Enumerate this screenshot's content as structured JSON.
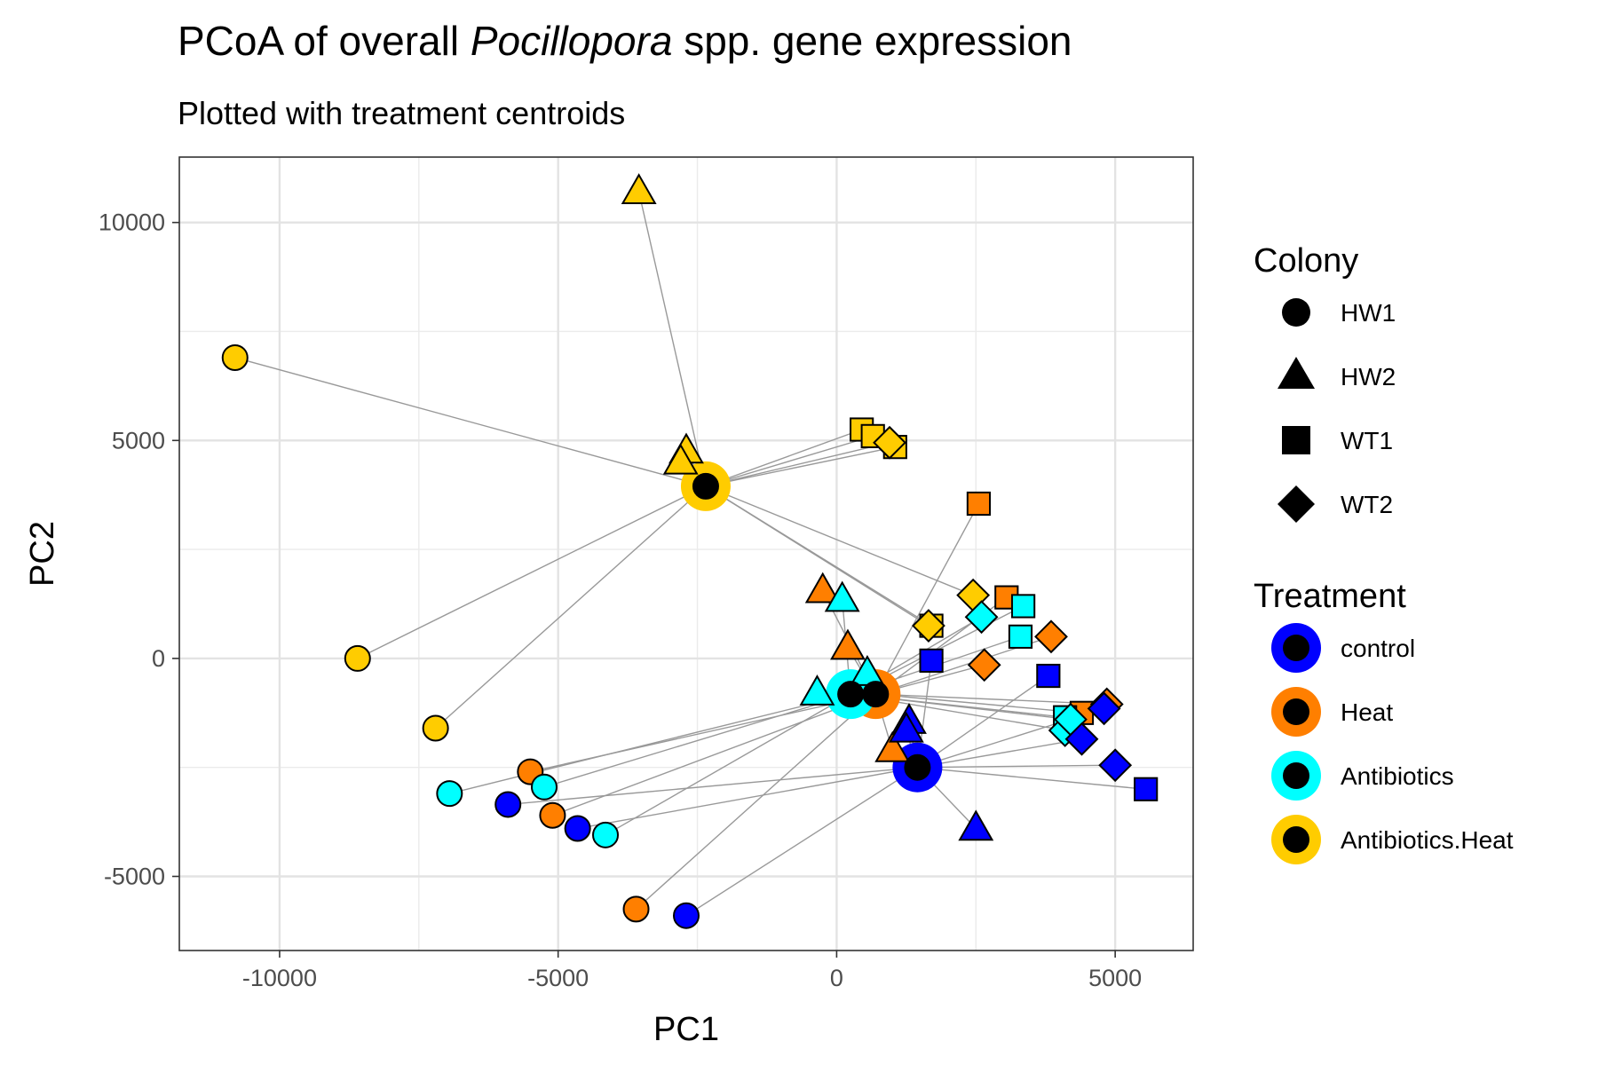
{
  "chart_data": {
    "type": "scatter",
    "title_prefix": "PCoA of overall ",
    "title_italic": "Pocillopora",
    "title_suffix": " spp. gene expression",
    "subtitle": "Plotted with treatment centroids",
    "xlabel": "PC1",
    "ylabel": "PC2",
    "xlim": [
      -11800,
      6400
    ],
    "ylim": [
      -6700,
      11500
    ],
    "xticks": [
      -10000,
      -5000,
      0,
      5000
    ],
    "yticks": [
      -5000,
      0,
      5000,
      10000
    ],
    "xtick_labels": [
      "-10000",
      "-5000",
      "0",
      "5000"
    ],
    "ytick_labels": [
      "-5000",
      "0",
      "5000",
      "10000"
    ],
    "grid": true,
    "colony_legend_title": "Colony",
    "colony_legend": [
      {
        "label": "HW1",
        "shape": "circle"
      },
      {
        "label": "HW2",
        "shape": "triangle"
      },
      {
        "label": "WT1",
        "shape": "square"
      },
      {
        "label": "WT2",
        "shape": "diamond"
      }
    ],
    "treatment_legend_title": "Treatment",
    "treatment_legend": [
      {
        "label": "control",
        "key": "control",
        "color": "#0000FF"
      },
      {
        "label": "Heat",
        "key": "heat",
        "color": "#FF7F00"
      },
      {
        "label": "Antibiotics",
        "key": "antibiotics",
        "color": "#00FFFF"
      },
      {
        "label": "Antibiotics.Heat",
        "key": "antibiotics_heat",
        "color": "#FFCC00"
      }
    ],
    "centroids": [
      {
        "treatment": "control",
        "x": 1450,
        "y": -2500
      },
      {
        "treatment": "heat",
        "x": 700,
        "y": -820
      },
      {
        "treatment": "antibiotics",
        "x": 250,
        "y": -820
      },
      {
        "treatment": "antibiotics_heat",
        "x": -2350,
        "y": 3950
      }
    ],
    "points": [
      {
        "treatment": "antibiotics_heat",
        "colony": "HW1",
        "x": -10800,
        "y": 6900
      },
      {
        "treatment": "antibiotics_heat",
        "colony": "HW1",
        "x": -8600,
        "y": 0
      },
      {
        "treatment": "antibiotics_heat",
        "colony": "HW1",
        "x": -7200,
        "y": -1600
      },
      {
        "treatment": "antibiotics_heat",
        "colony": "HW2",
        "x": -3550,
        "y": 10700
      },
      {
        "treatment": "antibiotics_heat",
        "colony": "HW2",
        "x": -2700,
        "y": 4750
      },
      {
        "treatment": "antibiotics_heat",
        "colony": "HW2",
        "x": -2800,
        "y": 4500
      },
      {
        "treatment": "antibiotics_heat",
        "colony": "WT1",
        "x": 450,
        "y": 5250
      },
      {
        "treatment": "antibiotics_heat",
        "colony": "WT1",
        "x": 650,
        "y": 5100
      },
      {
        "treatment": "antibiotics_heat",
        "colony": "WT1",
        "x": 1050,
        "y": 4850
      },
      {
        "treatment": "antibiotics_heat",
        "colony": "WT2",
        "x": 950,
        "y": 4950
      },
      {
        "treatment": "antibiotics_heat",
        "colony": "WT1",
        "x": 1700,
        "y": 750
      },
      {
        "treatment": "antibiotics_heat",
        "colony": "WT2",
        "x": 1650,
        "y": 750
      },
      {
        "treatment": "antibiotics_heat",
        "colony": "WT2",
        "x": 2450,
        "y": 1450
      },
      {
        "treatment": "heat",
        "colony": "HW1",
        "x": -5500,
        "y": -2600
      },
      {
        "treatment": "heat",
        "colony": "HW1",
        "x": -5100,
        "y": -3600
      },
      {
        "treatment": "heat",
        "colony": "HW1",
        "x": -3600,
        "y": -5750
      },
      {
        "treatment": "heat",
        "colony": "HW2",
        "x": -250,
        "y": 1550
      },
      {
        "treatment": "heat",
        "colony": "HW2",
        "x": 200,
        "y": 250
      },
      {
        "treatment": "heat",
        "colony": "HW2",
        "x": 1000,
        "y": -2100
      },
      {
        "treatment": "heat",
        "colony": "WT1",
        "x": 2550,
        "y": 3550
      },
      {
        "treatment": "heat",
        "colony": "WT1",
        "x": 3050,
        "y": 1400
      },
      {
        "treatment": "heat",
        "colony": "WT1",
        "x": 4400,
        "y": -1250
      },
      {
        "treatment": "heat",
        "colony": "WT2",
        "x": 2650,
        "y": -150
      },
      {
        "treatment": "heat",
        "colony": "WT2",
        "x": 3850,
        "y": 500
      },
      {
        "treatment": "heat",
        "colony": "WT2",
        "x": 4850,
        "y": -1050
      },
      {
        "treatment": "antibiotics",
        "colony": "HW1",
        "x": -6950,
        "y": -3100
      },
      {
        "treatment": "antibiotics",
        "colony": "HW1",
        "x": -5250,
        "y": -2950
      },
      {
        "treatment": "antibiotics",
        "colony": "HW1",
        "x": -4150,
        "y": -4050
      },
      {
        "treatment": "antibiotics",
        "colony": "HW2",
        "x": 100,
        "y": 1350
      },
      {
        "treatment": "antibiotics",
        "colony": "HW2",
        "x": -350,
        "y": -800
      },
      {
        "treatment": "antibiotics",
        "colony": "HW2",
        "x": 550,
        "y": -350
      },
      {
        "treatment": "antibiotics",
        "colony": "WT1",
        "x": 3350,
        "y": 1200
      },
      {
        "treatment": "antibiotics",
        "colony": "WT1",
        "x": 3300,
        "y": 500
      },
      {
        "treatment": "antibiotics",
        "colony": "WT1",
        "x": 4100,
        "y": -1350
      },
      {
        "treatment": "antibiotics",
        "colony": "WT2",
        "x": 2600,
        "y": 950
      },
      {
        "treatment": "antibiotics",
        "colony": "WT2",
        "x": 4100,
        "y": -1650
      },
      {
        "treatment": "antibiotics",
        "colony": "WT2",
        "x": 4200,
        "y": -1400
      },
      {
        "treatment": "control",
        "colony": "HW1",
        "x": -5900,
        "y": -3350
      },
      {
        "treatment": "control",
        "colony": "HW1",
        "x": -4650,
        "y": -3900
      },
      {
        "treatment": "control",
        "colony": "HW1",
        "x": -2700,
        "y": -5900
      },
      {
        "treatment": "control",
        "colony": "HW2",
        "x": 1300,
        "y": -1450
      },
      {
        "treatment": "control",
        "colony": "HW2",
        "x": 1250,
        "y": -1650
      },
      {
        "treatment": "control",
        "colony": "HW2",
        "x": 2500,
        "y": -3900
      },
      {
        "treatment": "control",
        "colony": "WT1",
        "x": 1700,
        "y": -50
      },
      {
        "treatment": "control",
        "colony": "WT1",
        "x": 3800,
        "y": -400
      },
      {
        "treatment": "control",
        "colony": "WT1",
        "x": 5550,
        "y": -3000
      },
      {
        "treatment": "control",
        "colony": "WT2",
        "x": 4400,
        "y": -1850
      },
      {
        "treatment": "control",
        "colony": "WT2",
        "x": 4800,
        "y": -1150
      },
      {
        "treatment": "control",
        "colony": "WT2",
        "x": 5000,
        "y": -2450
      }
    ]
  }
}
